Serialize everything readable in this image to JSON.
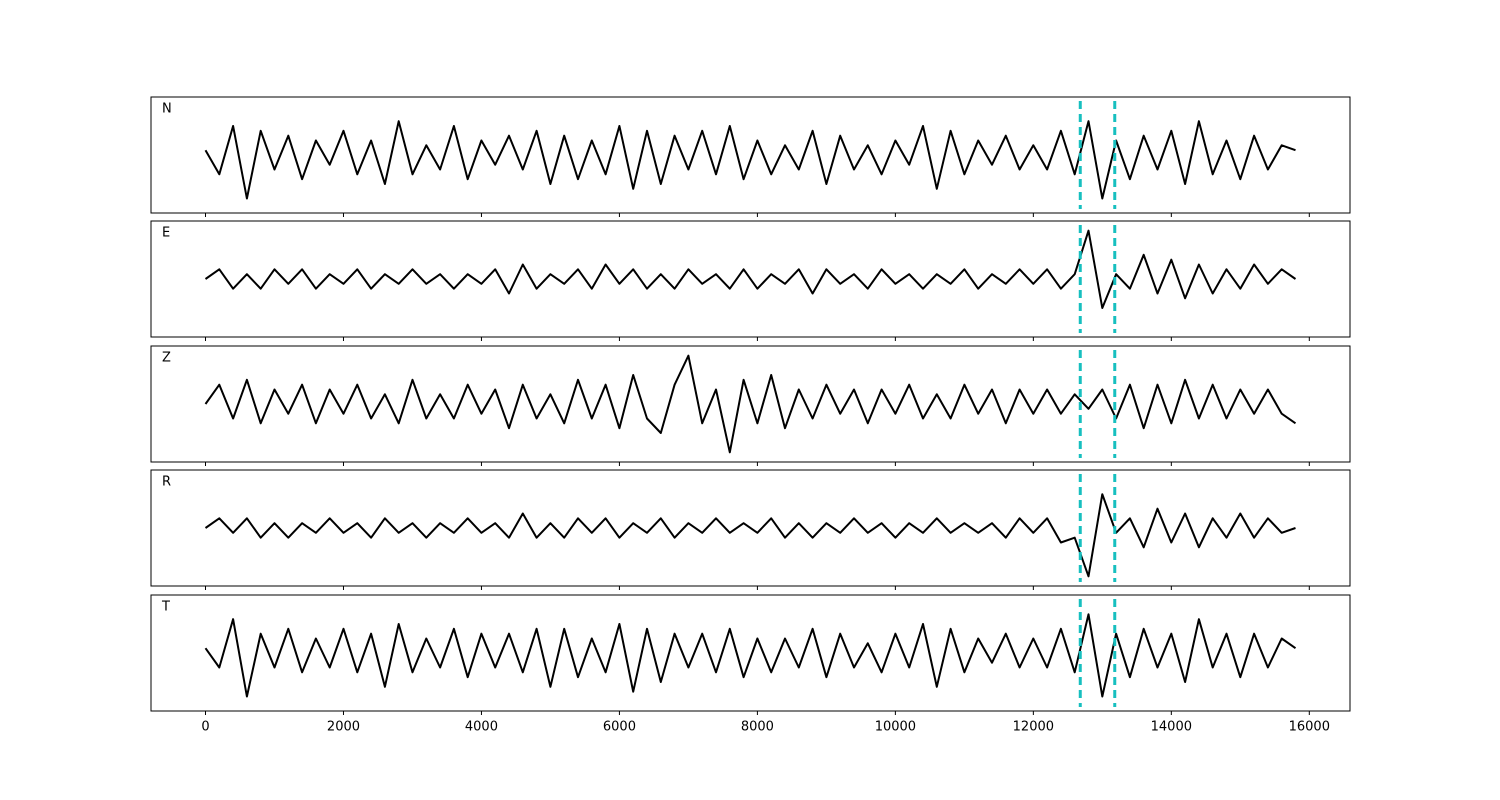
{
  "chart_data": {
    "type": "line",
    "x": [
      0,
      200,
      400,
      600,
      800,
      1000,
      1200,
      1400,
      1600,
      1800,
      2000,
      2200,
      2400,
      2600,
      2800,
      3000,
      3200,
      3400,
      3600,
      3800,
      4000,
      4200,
      4400,
      4600,
      4800,
      5000,
      5200,
      5400,
      5600,
      5800,
      6000,
      6200,
      6400,
      6600,
      6800,
      7000,
      7200,
      7400,
      7600,
      7800,
      8000,
      8200,
      8400,
      8600,
      8800,
      9000,
      9200,
      9400,
      9600,
      9800,
      10000,
      10200,
      10400,
      10600,
      10800,
      11000,
      11200,
      11400,
      11600,
      11800,
      12000,
      12200,
      12400,
      12600,
      12800,
      13000,
      13200,
      13400,
      13600,
      13800,
      14000,
      14200,
      14400,
      14600,
      14800,
      15000,
      15200,
      15400,
      15600,
      15800
    ],
    "series": [
      {
        "name": "N",
        "color": "#000000",
        "values": [
          0.1,
          -0.4,
          0.6,
          -0.9,
          0.5,
          -0.3,
          0.4,
          -0.5,
          0.3,
          -0.2,
          0.5,
          -0.4,
          0.3,
          -0.6,
          0.7,
          -0.4,
          0.2,
          -0.3,
          0.6,
          -0.5,
          0.3,
          -0.2,
          0.4,
          -0.3,
          0.5,
          -0.6,
          0.4,
          -0.5,
          0.3,
          -0.4,
          0.6,
          -0.7,
          0.5,
          -0.6,
          0.4,
          -0.3,
          0.5,
          -0.4,
          0.6,
          -0.5,
          0.3,
          -0.4,
          0.2,
          -0.3,
          0.5,
          -0.6,
          0.4,
          -0.3,
          0.2,
          -0.4,
          0.3,
          -0.2,
          0.6,
          -0.7,
          0.5,
          -0.4,
          0.3,
          -0.2,
          0.4,
          -0.3,
          0.2,
          -0.3,
          0.5,
          -0.4,
          0.7,
          -0.9,
          0.3,
          -0.5,
          0.4,
          -0.3,
          0.5,
          -0.6,
          0.7,
          -0.4,
          0.3,
          -0.5,
          0.4,
          -0.3,
          0.2,
          0.1
        ]
      },
      {
        "name": "E",
        "color": "#000000",
        "values": [
          0.0,
          0.2,
          -0.2,
          0.1,
          -0.2,
          0.2,
          -0.1,
          0.2,
          -0.2,
          0.1,
          -0.1,
          0.2,
          -0.2,
          0.1,
          -0.1,
          0.2,
          -0.1,
          0.1,
          -0.2,
          0.1,
          -0.1,
          0.2,
          -0.3,
          0.3,
          -0.2,
          0.1,
          -0.1,
          0.2,
          -0.2,
          0.3,
          -0.1,
          0.2,
          -0.2,
          0.1,
          -0.2,
          0.2,
          -0.1,
          0.1,
          -0.2,
          0.2,
          -0.2,
          0.1,
          -0.1,
          0.2,
          -0.3,
          0.2,
          -0.1,
          0.1,
          -0.2,
          0.2,
          -0.1,
          0.1,
          -0.2,
          0.1,
          -0.1,
          0.2,
          -0.2,
          0.1,
          -0.1,
          0.2,
          -0.1,
          0.2,
          -0.2,
          0.1,
          1.0,
          -0.6,
          0.1,
          -0.2,
          0.5,
          -0.3,
          0.4,
          -0.4,
          0.3,
          -0.3,
          0.2,
          -0.2,
          0.3,
          -0.1,
          0.2,
          0.0
        ]
      },
      {
        "name": "Z",
        "color": "#000000",
        "values": [
          0.0,
          0.4,
          -0.3,
          0.5,
          -0.4,
          0.3,
          -0.2,
          0.4,
          -0.4,
          0.3,
          -0.2,
          0.4,
          -0.3,
          0.2,
          -0.4,
          0.5,
          -0.3,
          0.2,
          -0.3,
          0.4,
          -0.2,
          0.3,
          -0.5,
          0.4,
          -0.3,
          0.2,
          -0.4,
          0.5,
          -0.3,
          0.4,
          -0.5,
          0.6,
          -0.3,
          -0.6,
          0.4,
          1.0,
          -0.4,
          0.3,
          -1.0,
          0.5,
          -0.4,
          0.6,
          -0.5,
          0.3,
          -0.3,
          0.4,
          -0.2,
          0.3,
          -0.4,
          0.3,
          -0.2,
          0.4,
          -0.3,
          0.2,
          -0.3,
          0.4,
          -0.2,
          0.3,
          -0.4,
          0.3,
          -0.2,
          0.3,
          -0.2,
          0.2,
          -0.1,
          0.3,
          -0.3,
          0.4,
          -0.5,
          0.4,
          -0.4,
          0.5,
          -0.3,
          0.4,
          -0.3,
          0.3,
          -0.2,
          0.3,
          -0.2,
          -0.4
        ]
      },
      {
        "name": "R",
        "color": "#000000",
        "values": [
          0.0,
          0.2,
          -0.1,
          0.2,
          -0.2,
          0.1,
          -0.2,
          0.1,
          -0.1,
          0.2,
          -0.1,
          0.1,
          -0.2,
          0.2,
          -0.1,
          0.1,
          -0.2,
          0.1,
          -0.1,
          0.2,
          -0.1,
          0.1,
          -0.2,
          0.3,
          -0.2,
          0.1,
          -0.2,
          0.2,
          -0.1,
          0.2,
          -0.2,
          0.1,
          -0.1,
          0.2,
          -0.2,
          0.1,
          -0.1,
          0.2,
          -0.1,
          0.1,
          -0.1,
          0.2,
          -0.2,
          0.1,
          -0.2,
          0.1,
          -0.1,
          0.2,
          -0.1,
          0.1,
          -0.2,
          0.1,
          -0.1,
          0.2,
          -0.1,
          0.1,
          -0.1,
          0.1,
          -0.2,
          0.2,
          -0.1,
          0.2,
          -0.3,
          -0.2,
          -1.0,
          0.7,
          -0.1,
          0.2,
          -0.4,
          0.4,
          -0.3,
          0.3,
          -0.4,
          0.2,
          -0.2,
          0.3,
          -0.2,
          0.2,
          -0.1,
          0.0
        ]
      },
      {
        "name": "T",
        "color": "#000000",
        "values": [
          0.1,
          -0.3,
          0.7,
          -0.9,
          0.4,
          -0.3,
          0.5,
          -0.4,
          0.3,
          -0.3,
          0.5,
          -0.4,
          0.4,
          -0.7,
          0.6,
          -0.4,
          0.3,
          -0.3,
          0.5,
          -0.5,
          0.4,
          -0.3,
          0.4,
          -0.4,
          0.5,
          -0.7,
          0.5,
          -0.5,
          0.3,
          -0.4,
          0.6,
          -0.8,
          0.5,
          -0.6,
          0.4,
          -0.3,
          0.4,
          -0.4,
          0.5,
          -0.5,
          0.3,
          -0.4,
          0.3,
          -0.3,
          0.5,
          -0.5,
          0.4,
          -0.3,
          0.2,
          -0.4,
          0.4,
          -0.3,
          0.6,
          -0.7,
          0.5,
          -0.4,
          0.3,
          -0.2,
          0.4,
          -0.3,
          0.3,
          -0.3,
          0.5,
          -0.4,
          0.8,
          -0.9,
          0.4,
          -0.5,
          0.5,
          -0.3,
          0.4,
          -0.6,
          0.7,
          -0.3,
          0.4,
          -0.5,
          0.4,
          -0.3,
          0.3,
          0.1
        ]
      }
    ],
    "markers": [
      12680,
      13180
    ],
    "marker_color": "#17bfbf",
    "xlim": [
      -790,
      16590
    ],
    "ylim": [
      -1.2,
      1.2
    ],
    "xticks": [
      0,
      2000,
      4000,
      6000,
      8000,
      10000,
      12000,
      14000,
      16000
    ]
  }
}
